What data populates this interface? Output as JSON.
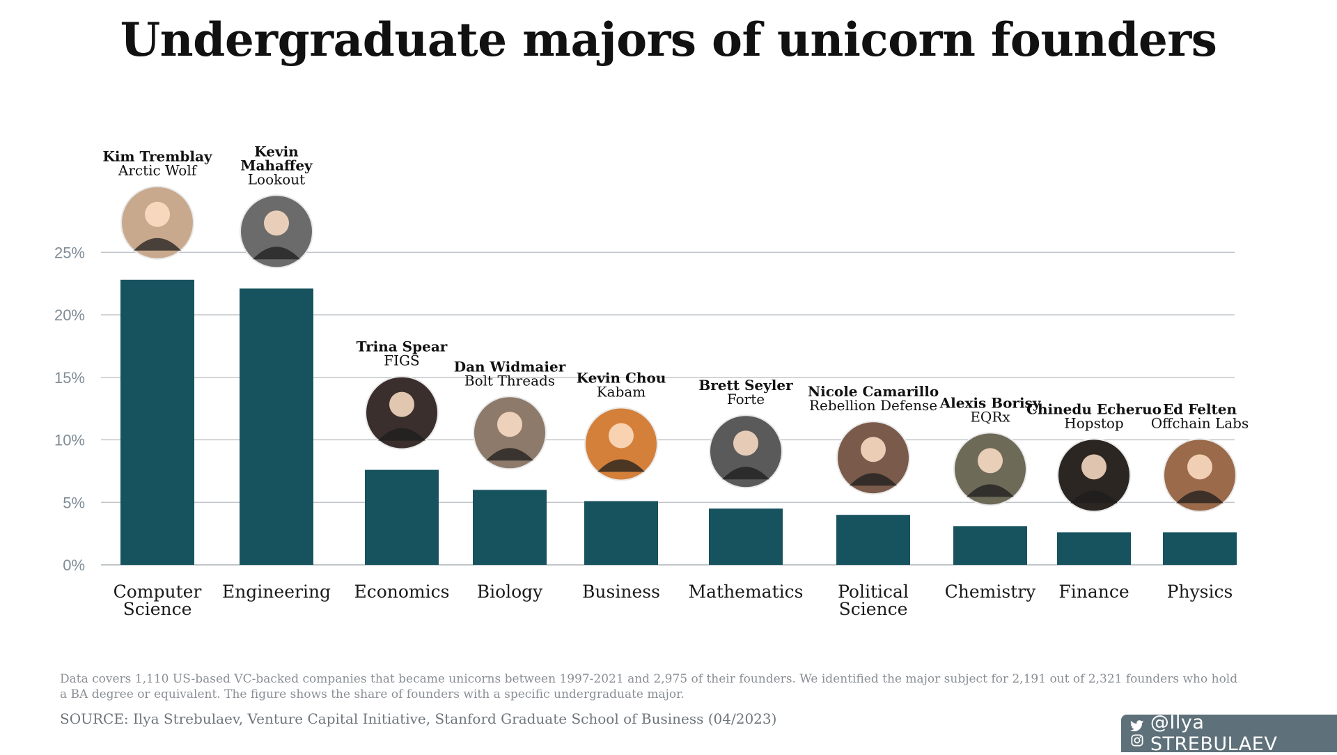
{
  "title": "Undergraduate majors of unicorn founders",
  "chart_data": {
    "type": "bar",
    "title": "Undergraduate majors of unicorn founders",
    "xlabel": "",
    "ylabel": "",
    "ylim": [
      0,
      25
    ],
    "y_ticks": [
      "0%",
      "5%",
      "10%",
      "15%",
      "20%",
      "25%"
    ],
    "grid": true,
    "bar_color": "#17535f",
    "categories": [
      [
        "Computer",
        "Science"
      ],
      [
        "Engineering"
      ],
      [
        "Economics"
      ],
      [
        "Biology"
      ],
      [
        "Business"
      ],
      [
        "Mathematics"
      ],
      [
        "Political",
        "Science"
      ],
      [
        "Chemistry"
      ],
      [
        "Finance"
      ],
      [
        "Physics"
      ]
    ],
    "values": [
      22.8,
      22.1,
      7.6,
      6.0,
      5.1,
      4.5,
      4.0,
      3.1,
      2.6,
      2.6
    ],
    "annotations": [
      {
        "name": [
          "Kim Tremblay"
        ],
        "company": "Arctic Wolf"
      },
      {
        "name": [
          "Kevin",
          "Mahaffey"
        ],
        "company": "Lookout"
      },
      {
        "name": [
          "Trina Spear"
        ],
        "company": "FIGS"
      },
      {
        "name": [
          "Dan Widmaier"
        ],
        "company": "Bolt Threads"
      },
      {
        "name": [
          "Kevin Chou"
        ],
        "company": "Kabam"
      },
      {
        "name": [
          "Brett Seyler"
        ],
        "company": "Forte"
      },
      {
        "name": [
          "Nicole Camarillo"
        ],
        "company": "Rebellion Defense"
      },
      {
        "name": [
          "Alexis Borisy"
        ],
        "company": "EQRx"
      },
      {
        "name": [
          "Chinedu Echeruo"
        ],
        "company": "Hopstop"
      },
      {
        "name": [
          "Ed Felten"
        ],
        "company": "Offchain Labs"
      }
    ]
  },
  "footnote": "Data covers 1,110 US-based VC-backed companies that became unicorns between 1997-2021 and 2,975 of their founders. We identified the major subject for 2,191 out of 2,321 founders who hold a BA degree or equivalent. The figure shows the share of founders with a specific undergraduate major.",
  "source": "SOURCE: Ilya Strebulaev, Venture Capital Initiative, Stanford Graduate School of Business (04/2023)",
  "handle": "@Ilya STREBULAEV",
  "handle_icons": [
    "twitter-icon",
    "instagram-icon"
  ]
}
